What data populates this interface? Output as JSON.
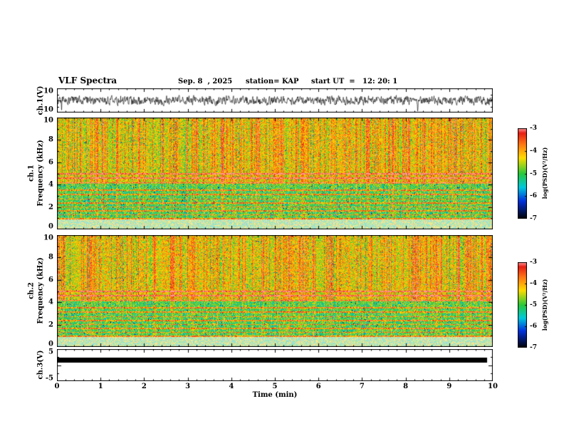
{
  "header": {
    "title": "VLF Spectra",
    "date": "Sep. 8  , 2025",
    "station": "station= KAP",
    "start_ut": "start UT  =   12: 20: 1"
  },
  "xaxis": {
    "label": "Time (min)",
    "min": 0,
    "max": 10,
    "ticks": [
      "0",
      "1",
      "2",
      "3",
      "4",
      "5",
      "6",
      "7",
      "8",
      "9",
      "10"
    ]
  },
  "panels": {
    "ch1_wave": {
      "ylabel": "ch.1(V)",
      "ymin": -10,
      "ymax": 10,
      "yticks": [
        "10",
        "-10"
      ]
    },
    "ch1_spec": {
      "ylabel_line1": "ch.1",
      "ylabel_line2": "Frequency (kHz)",
      "ymin": 0,
      "ymax": 10,
      "yticks": [
        "10",
        "8",
        "6",
        "4",
        "2",
        "0"
      ]
    },
    "ch2_spec": {
      "ylabel_line1": "ch.2",
      "ylabel_line2": "Frequency (kHz)",
      "ymin": 0,
      "ymax": 10,
      "yticks": [
        "10",
        "8",
        "6",
        "4",
        "2",
        "0"
      ]
    },
    "ch3_wave": {
      "ylabel": "ch.3(V)",
      "ymin": -5,
      "ymax": 5,
      "yticks": [
        "5",
        "-5"
      ]
    }
  },
  "colorbars": [
    {
      "label": "log(PSD)(V²/Hz)",
      "ticks": [
        "-3",
        "-4",
        "-5",
        "-6",
        "-7"
      ]
    },
    {
      "label": "log(PSD)(V²/Hz)",
      "ticks": [
        "-3",
        "-4",
        "-5",
        "-6",
        "-7"
      ]
    }
  ],
  "chart_data": [
    {
      "type": "line",
      "title": "ch.1 time-series",
      "xlabel": "Time (min)",
      "ylabel": "ch.1(V)",
      "xlim": [
        0,
        10
      ],
      "ylim": [
        -10,
        10
      ],
      "description": "Continuous broadband noisy waveform around 0 V, typical envelope ±4-6 V with occasional spikes toward ±9 V, drawn as a dense black trace over the full 10 minutes."
    },
    {
      "type": "heatmap",
      "title": "ch.1 spectrogram",
      "xlabel": "Time (min)",
      "ylabel": "Frequency (kHz)",
      "xlim": [
        0,
        10
      ],
      "ylim": [
        0,
        10
      ],
      "zlabel": "log(PSD)(V²/Hz)",
      "zlim": [
        -7,
        -3
      ],
      "colorbar": {
        "label": "log(PSD)(V²/Hz)",
        "ticks": [
          -3,
          -4,
          -5,
          -6,
          -7
        ],
        "palette": [
          {
            "v": -7.0,
            "color": "#000000"
          },
          {
            "v": -6.2,
            "color": "#0032dc"
          },
          {
            "v": -5.6,
            "color": "#00c8dc"
          },
          {
            "v": -5.0,
            "color": "#28c83c"
          },
          {
            "v": -4.3,
            "color": "#ffdc00"
          },
          {
            "v": -3.7,
            "color": "#ff7814"
          },
          {
            "v": -3.2,
            "color": "#e61e14"
          },
          {
            "v": -3.0,
            "color": "#ff9696"
          }
        ]
      },
      "horizontal_emission_lines_khz": [
        5.0,
        4.6,
        4.2,
        3.55,
        3.15,
        2.75,
        2.4,
        2.05,
        1.7,
        1.35,
        1.0
      ],
      "features": {
        "upper_band": "4-10 kHz dominated by red/orange broadband power (~-3.5) with dense vertical red sferic streaks every few seconds and green gaps",
        "mid_band": "1-4 kHz mottled green/cyan/yellow (~-5) crossed by thin red horizontal power-line harmonics",
        "low_band": "0-0.9 kHz pale/near-white saturated strip with sparse colored speckle"
      }
    },
    {
      "type": "heatmap",
      "title": "ch.2 spectrogram",
      "xlabel": "Time (min)",
      "ylabel": "Frequency (kHz)",
      "xlim": [
        0,
        10
      ],
      "ylim": [
        0,
        10
      ],
      "zlabel": "log(PSD)(V²/Hz)",
      "zlim": [
        -7,
        -3
      ],
      "colorbar": {
        "label": "log(PSD)(V²/Hz)",
        "ticks": [
          -3,
          -4,
          -5,
          -6,
          -7
        ]
      },
      "horizontal_emission_lines_khz": [
        5.0,
        4.6,
        4.2,
        3.55,
        3.15,
        2.75,
        2.4,
        2.05,
        1.7,
        1.35,
        1.0
      ],
      "features": {
        "upper_band": "4-10 kHz dominated by red/orange broadband power with vertical red streaks, very similar to ch.1",
        "mid_band": "1-4 kHz mottled green/cyan/yellow with thin red horizontal lines",
        "low_band": "0-0.9 kHz pale/near-white saturated strip"
      }
    },
    {
      "type": "line",
      "title": "ch.3 time-series",
      "xlabel": "Time (min)",
      "ylabel": "ch.3(V)",
      "xlim": [
        0,
        10
      ],
      "ylim": [
        -5,
        5
      ],
      "description": "Flat saturated signal rendered as a solid thick black bar near +2 V spanning 0 to ~9.9 minutes."
    }
  ]
}
